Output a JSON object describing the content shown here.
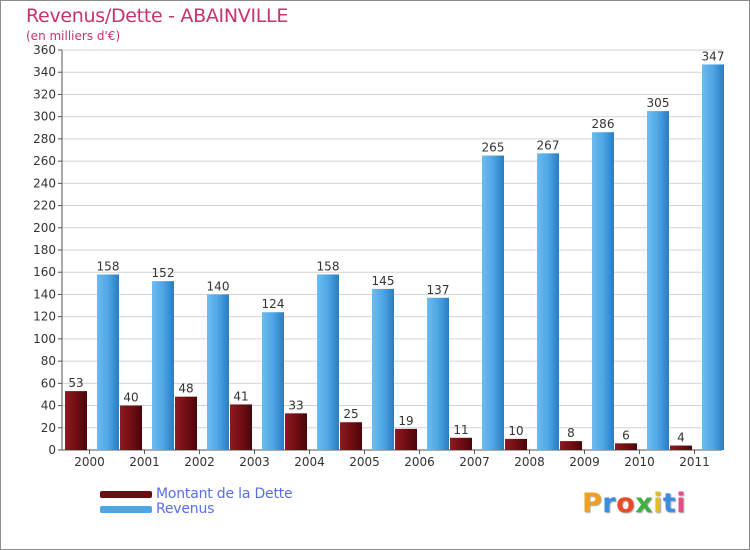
{
  "header": {
    "title": "Revenus/Dette - ABAINVILLE",
    "subtitle": "(en milliers d'€)"
  },
  "legend": {
    "items": [
      {
        "label": "Montant de la Dette",
        "color": "#6e0c12"
      },
      {
        "label": "Revenus",
        "color": "#4ea6e4"
      }
    ]
  },
  "logo": {
    "letters": [
      "P",
      "r",
      "o",
      "x",
      "i",
      "t",
      "i"
    ],
    "colors": [
      "#f0a020",
      "#3c8ce0",
      "#e84a2a",
      "#40b040",
      "#e0c020",
      "#3c8ce0",
      "#e84a8a"
    ]
  },
  "chart_data": {
    "type": "bar",
    "title": "Revenus/Dette - ABAINVILLE",
    "subtitle": "(en milliers d'€)",
    "xlabel": "",
    "ylabel": "",
    "categories": [
      "2000",
      "2001",
      "2002",
      "2003",
      "2004",
      "2005",
      "2006",
      "2007",
      "2008",
      "2009",
      "2010",
      "2011"
    ],
    "series": [
      {
        "name": "Montant de la Dette",
        "color": "#6e0c12",
        "values": [
          53,
          40,
          48,
          41,
          33,
          25,
          19,
          11,
          10,
          8,
          6,
          4
        ]
      },
      {
        "name": "Revenus",
        "color": "#4ea6e4",
        "values": [
          158,
          152,
          140,
          124,
          158,
          145,
          137,
          265,
          267,
          286,
          305,
          347
        ]
      }
    ],
    "ylim": [
      0,
      360
    ],
    "yticks": [
      0,
      20,
      40,
      60,
      80,
      100,
      120,
      140,
      160,
      180,
      200,
      220,
      240,
      260,
      280,
      300,
      320,
      340,
      360
    ],
    "grid": true,
    "legend_position": "bottom-left"
  }
}
